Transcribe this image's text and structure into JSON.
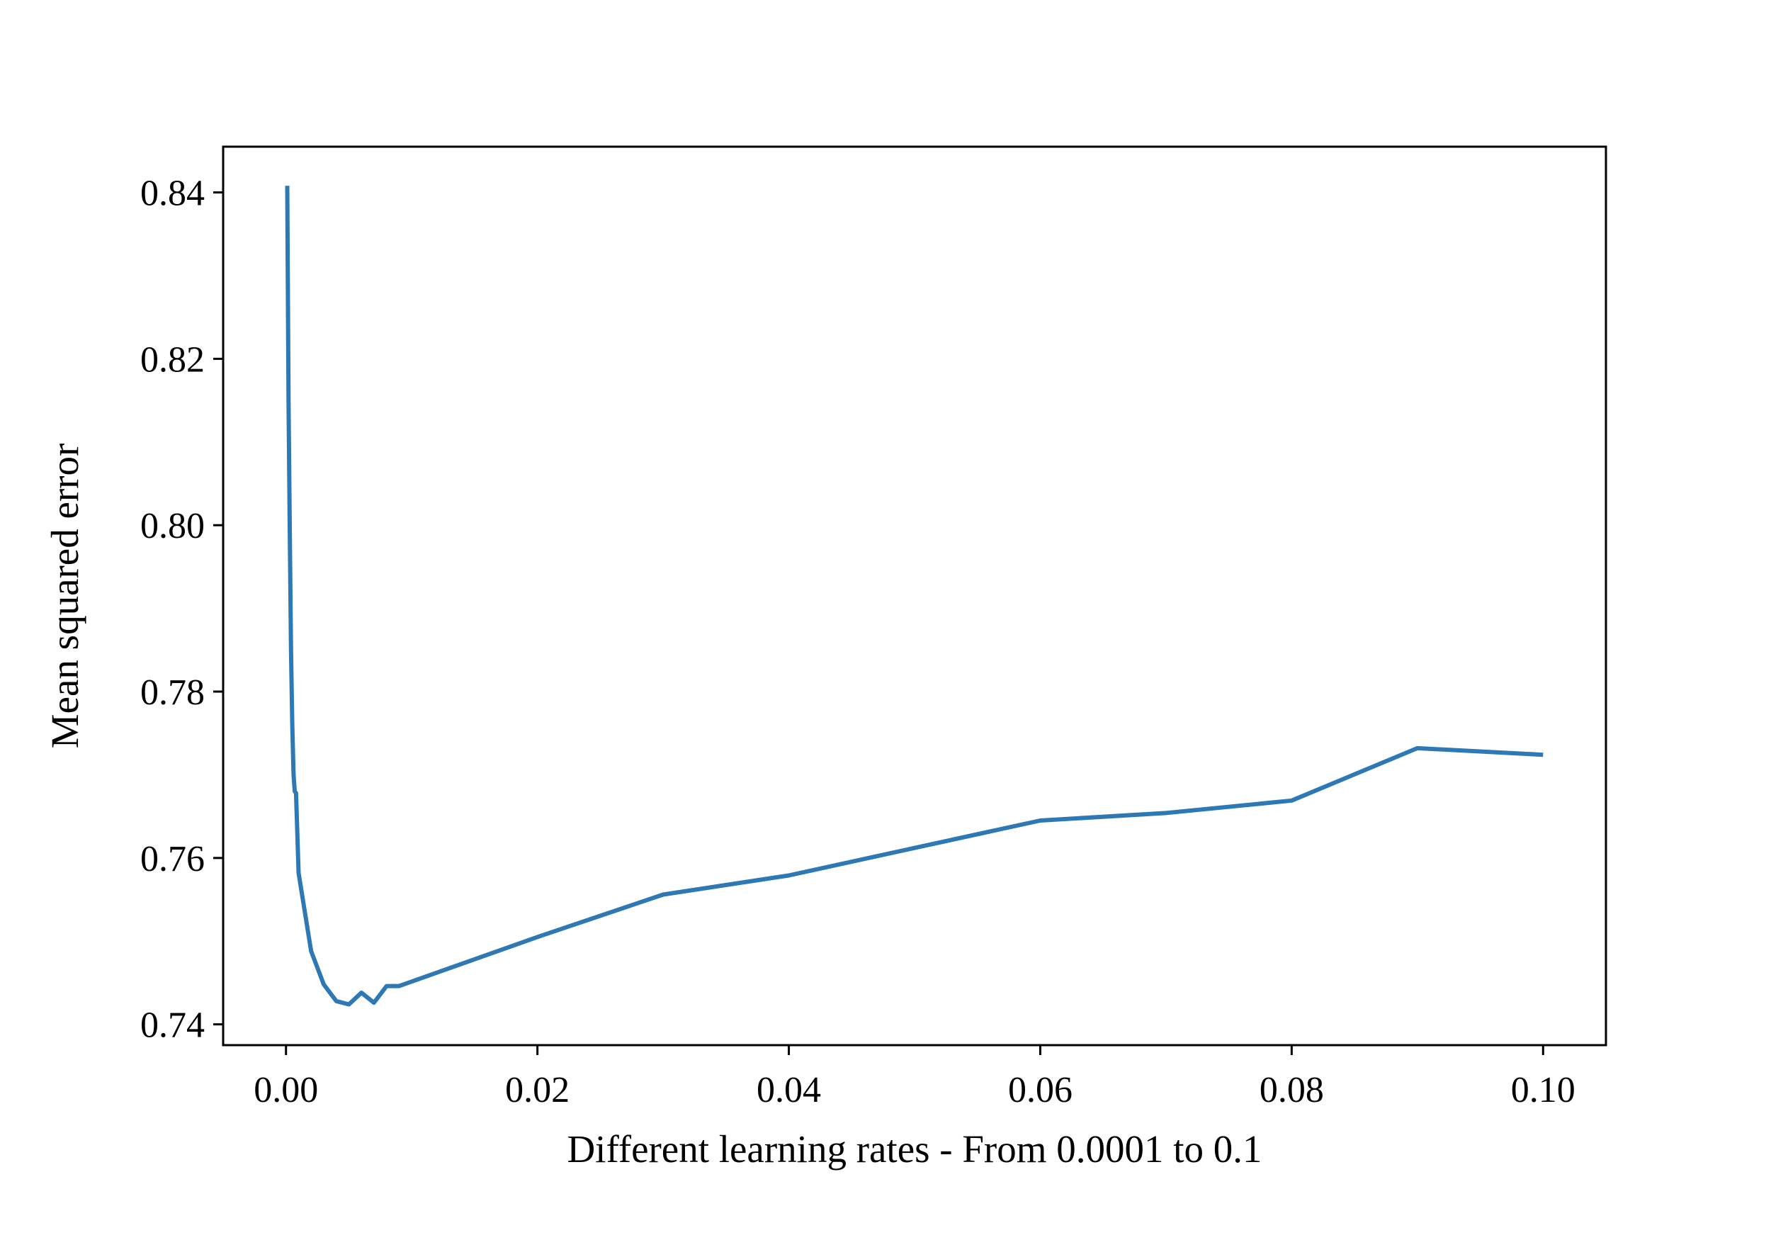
{
  "chart_data": {
    "type": "line",
    "title": "",
    "xlabel": "Different learning rates - From 0.0001 to 0.1",
    "ylabel": "Mean squared error",
    "xlim": [
      -0.005,
      0.105
    ],
    "ylim": [
      0.7375,
      0.8455
    ],
    "xticks": [
      0.0,
      0.02,
      0.04,
      0.06,
      0.08,
      0.1
    ],
    "xtick_labels": [
      "0.00",
      "0.02",
      "0.04",
      "0.06",
      "0.08",
      "0.10"
    ],
    "yticks": [
      0.74,
      0.76,
      0.78,
      0.8,
      0.82,
      0.84
    ],
    "ytick_labels": [
      "0.74",
      "0.76",
      "0.78",
      "0.80",
      "0.82",
      "0.84"
    ],
    "grid": false,
    "legend": false,
    "line_color": "#2e78b4",
    "series": [
      {
        "x": [
          0.0001,
          0.0002,
          0.0003,
          0.0004,
          0.0005,
          0.0006,
          0.0007,
          0.0008,
          0.0009,
          0.001,
          0.002,
          0.003,
          0.004,
          0.005,
          0.006,
          0.007,
          0.008,
          0.009,
          0.02,
          0.03,
          0.04,
          0.05,
          0.06,
          0.07,
          0.08,
          0.09,
          0.1
        ],
        "y": [
          0.8408,
          0.815,
          0.799,
          0.785,
          0.776,
          0.77,
          0.768,
          0.7678,
          0.763,
          0.7582,
          0.7488,
          0.7448,
          0.7428,
          0.7424,
          0.7438,
          0.7426,
          0.7446,
          0.7446,
          0.7505,
          0.7556,
          0.7579,
          0.7612,
          0.7645,
          0.7654,
          0.7669,
          0.7732,
          0.7724
        ]
      }
    ]
  }
}
